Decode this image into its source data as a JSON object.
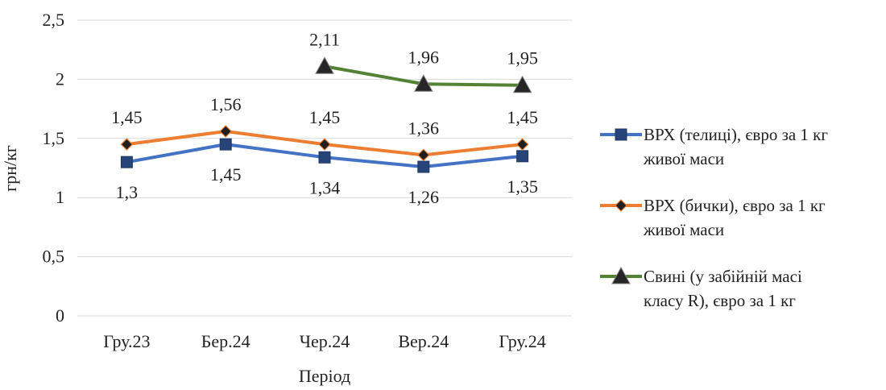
{
  "chart_data": {
    "type": "line",
    "title": "",
    "xlabel": "Період",
    "ylabel": "грн/кг",
    "categories": [
      "Гру.23",
      "Бер.24",
      "Чер.24",
      "Вер.24",
      "Гру.24"
    ],
    "ylim": [
      0,
      2.5
    ],
    "yticks": [
      "0",
      "0,5",
      "1",
      "1,5",
      "2",
      "2,5"
    ],
    "grid": true,
    "legend_position": "right",
    "series": [
      {
        "name_lines": [
          "ВРХ (телиці), євро за 1 кг",
          "живої маси"
        ],
        "values": [
          1.3,
          1.45,
          1.34,
          1.26,
          1.35
        ],
        "labels": [
          "1,3",
          "1,45",
          "1,34",
          "1,26",
          "1,35"
        ],
        "label_position": "below",
        "color": "#4472c4",
        "marker": "square",
        "marker_color": "#264478"
      },
      {
        "name_lines": [
          "ВРХ (бички), євро за 1 кг",
          "живої маси"
        ],
        "values": [
          1.45,
          1.56,
          1.45,
          1.36,
          1.45
        ],
        "labels": [
          "1,45",
          "1,56",
          "1,45",
          "1,36",
          "1,45"
        ],
        "label_position": "above",
        "color": "#ed7d31",
        "marker": "diamond",
        "marker_color": "#1f1f1f"
      },
      {
        "name_lines": [
          "Свині (у забійній масі",
          "класу R), євро за 1 кг"
        ],
        "values": [
          null,
          null,
          2.11,
          1.96,
          1.95
        ],
        "labels": [
          "",
          "",
          "2,11",
          "1,96",
          "1,95"
        ],
        "label_position": "above",
        "color": "#548235",
        "marker": "triangle",
        "marker_color": "#262626"
      }
    ]
  }
}
